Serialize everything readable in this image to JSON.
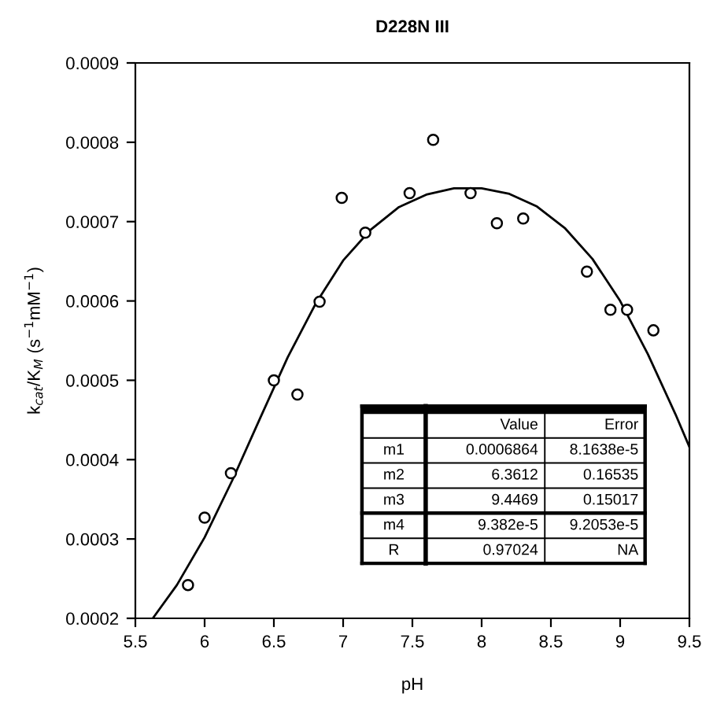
{
  "chart_data": {
    "type": "scatter",
    "title": "D228N III",
    "xlabel": "pH",
    "ylabel": "k$_{cat}$/K$_{M}$ (s$^{−1}$mM$^{−1}$)",
    "xlim": [
      5.5,
      9.5
    ],
    "xticks": [
      5.5,
      6,
      6.5,
      7,
      7.5,
      8,
      8.5,
      9,
      9.5
    ],
    "ylim": [
      0.0002,
      0.0009
    ],
    "yticks": [
      0.0002,
      0.0003,
      0.0004,
      0.0005,
      0.0006,
      0.0007,
      0.0008,
      0.0009
    ],
    "grid": false,
    "legend": false,
    "series": [
      {
        "marker": "circle",
        "color": "#000000",
        "x": [
          5.88,
          6.0,
          6.19,
          6.5,
          6.67,
          6.83,
          6.99,
          7.16,
          7.48,
          7.65,
          7.92,
          8.11,
          8.3,
          8.76,
          8.93,
          9.05,
          9.24
        ],
        "values": [
          0.000242,
          0.000327,
          0.000383,
          0.0005,
          0.000482,
          0.000599,
          0.00073,
          0.000686,
          0.000736,
          0.000803,
          0.000736,
          0.000698,
          0.000704,
          0.000637,
          0.000589,
          0.000589,
          0.000563
        ]
      },
      {
        "type": "line",
        "marker": "none",
        "line_style": "solid",
        "color": "#000000",
        "x": [
          5.63,
          5.8,
          6.0,
          6.2,
          6.4,
          6.6,
          6.8,
          7.0,
          7.2,
          7.4,
          7.6,
          7.8,
          8.0,
          8.2,
          8.4,
          8.6,
          8.8,
          9.0,
          9.2,
          9.4,
          9.5
        ],
        "values": [
          0.000201,
          0.000242,
          0.000302,
          0.000374,
          0.000452,
          0.000529,
          0.000596,
          0.000651,
          0.00069,
          0.000718,
          0.000734,
          0.000742,
          0.000742,
          0.000735,
          0.000719,
          0.000692,
          0.000653,
          0.0006,
          0.000533,
          0.000457,
          0.000416
        ]
      }
    ],
    "annotations": [
      "Value",
      "Error",
      "m1",
      "0.0006864",
      "8.1638e-5",
      "m2",
      "6.3612",
      "0.16535",
      "m3",
      "9.4469",
      "0.15017",
      "m4",
      "9.382e-5",
      "9.2053e-5",
      "R",
      "0.97024",
      "NA"
    ]
  }
}
